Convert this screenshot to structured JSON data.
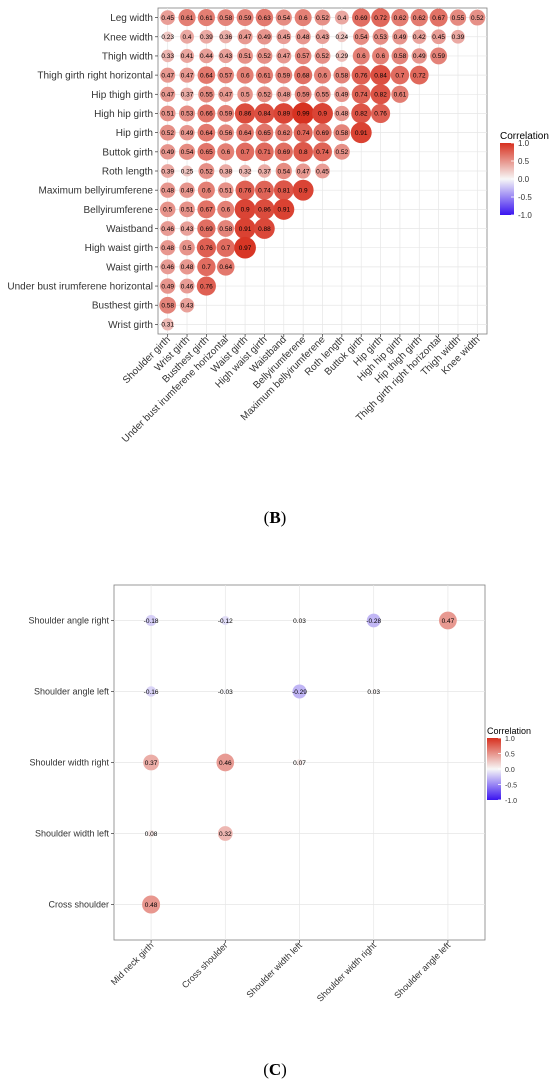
{
  "charts": [
    {
      "type": "heatmap",
      "caption": "B",
      "legend_title": "Correlation",
      "legend_ticks": [
        "1.0",
        "0.5",
        "0.0",
        "-0.5",
        "-1.0"
      ],
      "y_labels": [
        "Leg width",
        "Knee width",
        "Thigh width",
        "Thigh girth right horizontal",
        "Hip thigh girth",
        "High hip girth",
        "Hip girth",
        "Buttok girth",
        "Roth length",
        "Maximum bellyirumferene",
        "Bellyirumferene",
        "Waistband",
        "High waist girth",
        "Waist girth",
        "Under bust irumferene horizontal",
        "Busthest girth",
        "Wrist girth"
      ],
      "x_labels": [
        "Shoulder girth",
        "Wrist girth",
        "Busthest girth",
        "Under bust irumferene horizontal",
        "Waist girth",
        "High waist girth",
        "Waistband",
        "Bellyirumferene",
        "Maximum bellyirumferene",
        "Roth length",
        "Buttok girth",
        "Hip girth",
        "High hip girth",
        "Hip thigh girth",
        "Thigh girth right horizontal",
        "Thigh width",
        "Knee width"
      ],
      "values": [
        [
          0.45,
          0.61,
          0.61,
          0.58,
          0.59,
          0.63,
          0.54,
          0.6,
          0.52,
          0.4,
          0.69,
          0.72,
          0.62,
          0.62,
          0.67,
          0.55,
          0.52
        ],
        [
          0.23,
          0.4,
          0.39,
          0.36,
          0.47,
          0.49,
          0.45,
          0.48,
          0.43,
          0.24,
          0.54,
          0.53,
          0.49,
          0.42,
          0.45,
          0.39
        ],
        [
          0.33,
          0.41,
          0.44,
          0.43,
          0.51,
          0.52,
          0.47,
          0.57,
          0.52,
          0.29,
          0.6,
          0.6,
          0.58,
          0.49,
          0.59
        ],
        [
          0.47,
          0.47,
          0.64,
          0.57,
          0.6,
          0.61,
          0.59,
          0.68,
          0.6,
          0.58,
          0.76,
          0.84,
          0.7,
          0.72
        ],
        [
          0.47,
          0.37,
          0.55,
          0.47,
          0.5,
          0.52,
          0.48,
          0.59,
          0.55,
          0.49,
          0.74,
          0.82,
          0.61
        ],
        [
          0.51,
          0.53,
          0.66,
          0.59,
          0.86,
          0.84,
          0.89,
          0.99,
          0.9,
          0.48,
          0.82,
          0.76
        ],
        [
          0.52,
          0.49,
          0.64,
          0.56,
          0.64,
          0.65,
          0.62,
          0.74,
          0.69,
          0.58,
          0.91
        ],
        [
          0.49,
          0.54,
          0.65,
          0.6,
          0.7,
          0.71,
          0.69,
          0.8,
          0.74,
          0.52
        ],
        [
          0.39,
          0.25,
          0.52,
          0.38,
          0.32,
          0.37,
          0.54,
          0.47,
          0.45
        ],
        [
          0.48,
          0.49,
          0.6,
          0.51,
          0.76,
          0.74,
          0.81,
          0.9
        ],
        [
          0.5,
          0.51,
          0.67,
          0.6,
          0.9,
          0.86,
          0.91
        ],
        [
          0.46,
          0.43,
          0.69,
          0.58,
          0.91,
          0.88
        ],
        [
          0.48,
          0.5,
          0.76,
          0.7,
          0.97
        ],
        [
          0.46,
          0.48,
          0.7,
          0.64
        ],
        [
          0.49,
          0.46,
          0.76
        ],
        [
          0.58,
          0.43
        ],
        [
          0.31
        ]
      ],
      "value_labels": [
        [
          "0.45",
          "0.61",
          "0.61",
          "0.58",
          "0.59",
          "0.63",
          "0.54",
          "0.6",
          "0.52",
          "0.4",
          "0.69",
          "0.72",
          "0.62",
          "0.62",
          "0.67",
          "0.55",
          "0.52"
        ],
        [
          "0.23",
          "0.4",
          "0.39",
          "0.36",
          "0.47",
          "0.49",
          "0.45",
          "0.48",
          "0.43",
          "0.24",
          "0.54",
          "0.53",
          "0.49",
          "0.42",
          "0.45",
          "0.39"
        ],
        [
          "0.33",
          "0.41",
          "0.44",
          "0.43",
          "0.51",
          "0.52",
          "0.47",
          "0.57",
          "0.52",
          "0.29",
          "0.6",
          "0.6",
          "0.58",
          "0.49",
          "0.59"
        ],
        [
          "0.47",
          "0.47",
          "0.64",
          "0.57",
          "0.6",
          "0.61",
          "0.59",
          "0.68",
          "0.6",
          "0.58",
          "0.76",
          "0.84",
          "0.7",
          "0.72"
        ],
        [
          "0.47",
          "0.37",
          "0.55",
          "0.47",
          "0.5",
          "0.52",
          "0.48",
          "0.59",
          "0.55",
          "0.49",
          "0.74",
          "0.82",
          "0.61"
        ],
        [
          "0.51",
          "0.53",
          "0.66",
          "0.59",
          "0.86",
          "0.84",
          "0.89",
          "0.99",
          "0.9",
          "0.48",
          "0.82",
          "0.76"
        ],
        [
          "0.52",
          "0.49",
          "0.64",
          "0.56",
          "0.64",
          "0.65",
          "0.62",
          "0.74",
          "0.69",
          "0.58",
          "0.91"
        ],
        [
          "0.49",
          "0.54",
          "0.65",
          "0.6",
          "0.7",
          "0.71",
          "0.69",
          "0.8",
          "0.74",
          "0.52"
        ],
        [
          "0.39",
          "0.25",
          "0.52",
          "0.38",
          "0.32",
          "0.37",
          "0.54",
          "0.47",
          "0.45"
        ],
        [
          "0.48",
          "0.49",
          "0.6",
          "0.51",
          "0.76",
          "0.74",
          "0.81",
          "0.9"
        ],
        [
          "0.5",
          "0.51",
          "0.67",
          "0.6",
          "0.9",
          "0.86",
          "0.91"
        ],
        [
          "0.46",
          "0.43",
          "0.69",
          "0.58",
          "0.91",
          "0.88"
        ],
        [
          "0.48",
          "0.5",
          "0.76",
          "0.7",
          "0.97"
        ],
        [
          "0.46",
          "0.48",
          "0.7",
          "0.64"
        ],
        [
          "0.49",
          "0.46",
          "0.76"
        ],
        [
          "0.58",
          "0.43"
        ],
        [
          "0.31"
        ]
      ],
      "clim": [
        -1.0,
        1.0
      ],
      "grid": true
    },
    {
      "type": "heatmap",
      "caption": "C",
      "legend_title": "Correlation",
      "legend_ticks": [
        "1.0",
        "0.5",
        "0.0",
        "-0.5",
        "-1.0"
      ],
      "y_labels": [
        "Shoulder angle right",
        "Shoulder angle left",
        "Shoulder width right",
        "Shoulder width left",
        "Cross shoulder"
      ],
      "x_labels": [
        "Mid neck girth",
        "Cross shoulder",
        "Shoulder width left",
        "Shoulder width right",
        "Shoulder angle left"
      ],
      "values": [
        [
          -0.18,
          -0.12,
          0.03,
          -0.28,
          0.47
        ],
        [
          -0.16,
          -0.03,
          -0.29,
          0.03
        ],
        [
          0.37,
          0.46,
          0.07
        ],
        [
          0.08,
          0.32
        ],
        [
          0.48
        ]
      ],
      "value_labels": [
        [
          "-0.18",
          "-0.12",
          "0.03",
          "-0.28",
          "0.47"
        ],
        [
          "-0.16",
          "-0.03",
          "-0.29",
          "0.03"
        ],
        [
          "0.37",
          "0.46",
          "0.07"
        ],
        [
          "0.08",
          "0.32"
        ],
        [
          "0.48"
        ]
      ],
      "clim": [
        -1.0,
        1.0
      ],
      "grid": true
    }
  ],
  "colors": {
    "positive": "#d7301f",
    "neutral": "#f7f7f7",
    "negative": "#3a14f0",
    "grid": "#e6e6e6",
    "frame": "#7f7f7f"
  }
}
